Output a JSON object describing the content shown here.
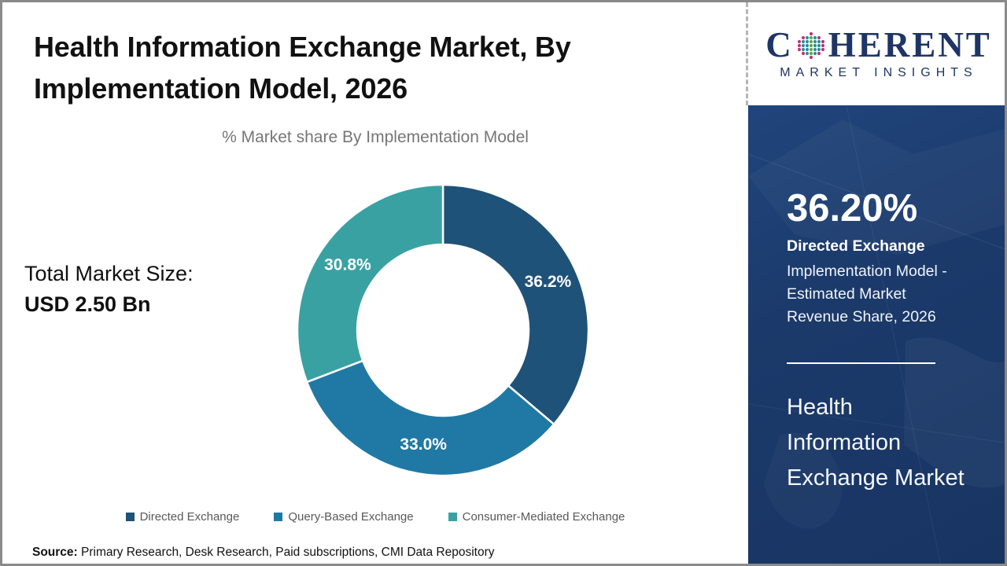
{
  "header": {
    "title": "Health Information Exchange Market, By\nImplementation Model, 2026",
    "subtitle": "% Market share By Implementation Model"
  },
  "brand": {
    "name_pre": "C",
    "name_post": "HERENT",
    "tagline": "MARKET INSIGHTS",
    "text_color": "#1e3566",
    "globe_colors": {
      "teal": "#2a8f9f",
      "green": "#62a744",
      "pink": "#c0346f"
    }
  },
  "stats": {
    "total_label": "Total Market Size:",
    "total_value": "USD 2.50 Bn"
  },
  "sidebar": {
    "bg_color": "#1b3a6b",
    "highlight_value": "36.20%",
    "highlight_title": "Directed Exchange",
    "highlight_desc": "Implementation Model - Estimated Market Revenue Share, 2026",
    "market_name": "Health Information Exchange Market"
  },
  "chart_data": {
    "type": "pie",
    "subtype": "donut",
    "title": "% Market share By Implementation Model",
    "year": "2026",
    "total_market_size": "USD 2.50 Bn",
    "start_angle_deg": 0,
    "legend_position": "bottom",
    "segments": [
      {
        "label": "Directed Exchange",
        "value": 36.2,
        "display": "36.2%",
        "color": "#1f5278"
      },
      {
        "label": "Query-Based Exchange",
        "value": 33.0,
        "display": "33.0%",
        "color": "#2079a4"
      },
      {
        "label": "Consumer-Mediated Exchange",
        "value": 30.8,
        "display": "30.8%",
        "color": "#3aa1a2"
      }
    ]
  },
  "footer": {
    "source_label": "Source:",
    "source_text": "Primary Research, Desk Research, Paid subscriptions, CMI Data Repository"
  }
}
